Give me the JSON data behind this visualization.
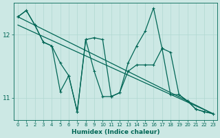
{
  "xlabel": "Humidex (Indice chaleur)",
  "bg_color": "#cce8e4",
  "grid_color": "#b0d8d0",
  "line_color": "#006655",
  "xlim": [
    -0.5,
    23.5
  ],
  "ylim": [
    10.65,
    12.5
  ],
  "yticks": [
    11,
    12
  ],
  "xticks": [
    0,
    1,
    2,
    3,
    4,
    5,
    6,
    7,
    8,
    9,
    10,
    11,
    12,
    13,
    14,
    15,
    16,
    17,
    18,
    19,
    20,
    21,
    22,
    23
  ],
  "line1_x": [
    0,
    1,
    2,
    3,
    4,
    5,
    6,
    7,
    8,
    9,
    10,
    11,
    12,
    13,
    14,
    15,
    16,
    17,
    18,
    19,
    20,
    21,
    22,
    23
  ],
  "line1_y": [
    12.28,
    12.38,
    12.15,
    11.88,
    11.82,
    11.1,
    11.35,
    10.78,
    11.92,
    11.42,
    11.02,
    11.02,
    11.08,
    11.42,
    11.52,
    11.52,
    11.52,
    11.78,
    11.05,
    11.05,
    10.95,
    10.82,
    10.78,
    10.75
  ],
  "line2_x": [
    0,
    1,
    2,
    3,
    4,
    5,
    6,
    7,
    8,
    9,
    10,
    11,
    12,
    13,
    14,
    15,
    16,
    17,
    18,
    19,
    20,
    21,
    22,
    23
  ],
  "line2_y": [
    12.28,
    12.38,
    12.15,
    11.88,
    11.82,
    11.55,
    11.35,
    10.78,
    11.92,
    11.95,
    11.92,
    11.02,
    11.08,
    11.55,
    11.82,
    12.05,
    12.42,
    11.78,
    11.72,
    11.05,
    10.95,
    10.82,
    10.78,
    10.75
  ],
  "line3_x": [
    0,
    23
  ],
  "line3_y": [
    12.28,
    10.75
  ],
  "line4_x": [
    0,
    23
  ],
  "line4_y": [
    12.15,
    10.75
  ]
}
